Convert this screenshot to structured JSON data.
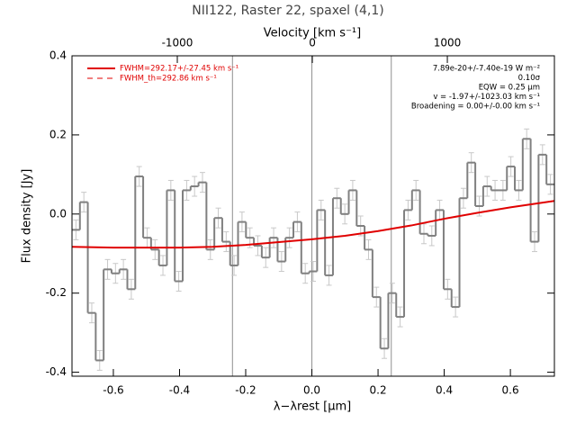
{
  "chart_data": {
    "type": "histogram",
    "title": "NII122, Raster 22, spaxel (4,1)",
    "xlabel": "λ−λrest [μm]",
    "ylabel": "Flux density [Jy]",
    "x2label": "Velocity [km s⁻¹]",
    "xlim": [
      -0.725,
      0.733
    ],
    "ylim": [
      -0.41,
      0.4
    ],
    "x2lim": [
      -1780,
      1793
    ],
    "xticks": [
      -0.6,
      -0.4,
      -0.2,
      {
        "value": 0,
        "label": "0.0"
      },
      0.2,
      0.4,
      0.6
    ],
    "yticks": [
      -0.4,
      -0.2,
      {
        "value": 0,
        "label": "0.0"
      },
      0.2,
      0.4
    ],
    "x2ticks": [
      -1000,
      0,
      1000
    ],
    "color": "#808080",
    "error_color": "#c8c8c8",
    "bins": [
      -0.725,
      -0.7011,
      -0.6772,
      -0.6533,
      -0.6294,
      -0.6055,
      -0.5816,
      -0.5577,
      -0.5338,
      -0.5099,
      -0.486,
      -0.4621,
      -0.4382,
      -0.4143,
      -0.3904,
      -0.3665,
      -0.3426,
      -0.3187,
      -0.2948,
      -0.2709,
      -0.247,
      -0.2231,
      -0.1992,
      -0.1753,
      -0.1514,
      -0.1275,
      -0.1036,
      -0.0797,
      -0.0558,
      -0.0319,
      -0.008,
      0.0159,
      0.0398,
      0.0637,
      0.0876,
      0.1115,
      0.1354,
      0.1593,
      0.1832,
      0.2071,
      0.231,
      0.2549,
      0.2788,
      0.3027,
      0.3266,
      0.3505,
      0.3744,
      0.3983,
      0.4222,
      0.4461,
      0.47,
      0.4939,
      0.5178,
      0.5417,
      0.5656,
      0.5895,
      0.6134,
      0.6373,
      0.6612,
      0.6851,
      0.709,
      0.7329
    ],
    "values": [
      -0.04,
      0.03,
      -0.25,
      -0.37,
      -0.14,
      -0.15,
      -0.14,
      -0.19,
      0.095,
      -0.06,
      -0.09,
      -0.13,
      0.06,
      -0.17,
      0.06,
      0.07,
      0.08,
      -0.09,
      -0.01,
      -0.07,
      -0.13,
      -0.02,
      -0.06,
      -0.08,
      -0.11,
      -0.06,
      -0.12,
      -0.06,
      -0.02,
      -0.15,
      -0.145,
      0.01,
      -0.155,
      0.04,
      0.0,
      0.06,
      -0.03,
      -0.09,
      -0.21,
      -0.34,
      -0.2,
      -0.26,
      0.01,
      0.06,
      -0.05,
      -0.055,
      0.01,
      -0.19,
      -0.235,
      0.04,
      0.13,
      0.02,
      0.07,
      0.06,
      0.06,
      0.12,
      0.06,
      0.19,
      -0.07,
      0.15,
      0.075
    ],
    "errors": [
      0.025,
      0.025,
      0.025,
      0.025,
      0.025,
      0.025,
      0.025,
      0.025,
      0.025,
      0.025,
      0.025,
      0.025,
      0.025,
      0.025,
      0.025,
      0.025,
      0.025,
      0.025,
      0.025,
      0.025,
      0.025,
      0.025,
      0.025,
      0.025,
      0.025,
      0.025,
      0.025,
      0.025,
      0.025,
      0.025,
      0.025,
      0.025,
      0.025,
      0.025,
      0.025,
      0.025,
      0.025,
      0.025,
      0.025,
      0.025,
      0.025,
      0.025,
      0.025,
      0.025,
      0.025,
      0.025,
      0.025,
      0.025,
      0.025,
      0.025,
      0.025,
      0.025,
      0.025,
      0.025,
      0.025,
      0.025,
      0.025,
      0.025,
      0.025,
      0.025,
      0.025
    ],
    "fit": {
      "color": "#e00000",
      "x": [
        -0.725,
        -0.6,
        -0.4,
        -0.3,
        -0.2,
        -0.1,
        0,
        0.1,
        0.2,
        0.3,
        0.4,
        0.5,
        0.6,
        0.733
      ],
      "values": [
        -0.083,
        -0.085,
        -0.085,
        -0.083,
        -0.078,
        -0.071,
        -0.064,
        -0.055,
        -0.043,
        -0.029,
        -0.012,
        0.003,
        0.017,
        0.033
      ]
    },
    "vlines": [
      -0.24,
      0,
      0.24
    ],
    "vline_color": "#909090",
    "legend": [
      {
        "label": "FWHM=292.17+/-27.45 km s⁻¹",
        "color": "#e00000",
        "style": "solid"
      },
      {
        "label": "FWHM_th=292.86 km s⁻¹",
        "color": "#e00000",
        "style": "dashed"
      }
    ],
    "annotations": [
      "7.89e-20+/-7.40e-19 W m⁻²",
      "0.10σ",
      "EQW = 0.25 μm",
      "v = -1.97+/-1023.03 km s⁻¹",
      "Broadening = 0.00+/-0.00 km s⁻¹"
    ]
  }
}
